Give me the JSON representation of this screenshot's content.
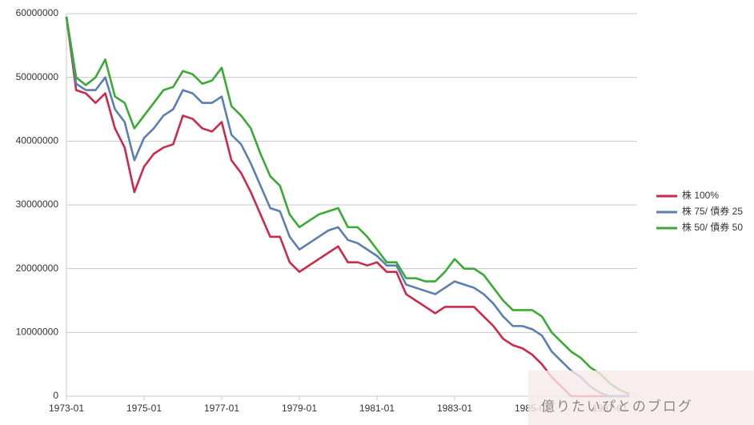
{
  "chart_data": {
    "type": "line",
    "categories": [
      "1973-01",
      null,
      null,
      null,
      null,
      null,
      null,
      null,
      "1975-01",
      null,
      null,
      null,
      null,
      null,
      null,
      null,
      "1977-01",
      null,
      null,
      null,
      null,
      null,
      null,
      null,
      "1979-01",
      null,
      null,
      null,
      null,
      null,
      null,
      null,
      "1981-01",
      null,
      null,
      null,
      null,
      null,
      null,
      null,
      "1983-01",
      null,
      null,
      null,
      null,
      null,
      null,
      null,
      "1985-01",
      null,
      null,
      null,
      null,
      null,
      null,
      null,
      "1987-01",
      null,
      null
    ],
    "series": [
      {
        "name": "株 100%",
        "color": "#cc2a4a",
        "values": [
          59500000,
          48000000,
          47500000,
          46000000,
          47500000,
          42000000,
          39000000,
          32000000,
          36000000,
          38000000,
          39000000,
          39500000,
          44000000,
          43500000,
          42000000,
          41500000,
          43000000,
          37000000,
          35000000,
          32000000,
          28500000,
          25000000,
          25000000,
          21000000,
          19500000,
          20500000,
          21500000,
          22500000,
          23500000,
          21000000,
          21000000,
          20500000,
          21000000,
          19500000,
          19500000,
          16000000,
          15000000,
          14000000,
          13000000,
          14000000,
          14000000,
          14000000,
          14000000,
          12500000,
          11000000,
          9000000,
          8000000,
          7500000,
          6500000,
          5000000,
          3000000,
          1500000,
          0,
          0,
          0,
          0,
          0,
          0,
          0
        ]
      },
      {
        "name": "株 75/ 債券 25",
        "color": "#5a7fb0",
        "values": [
          59500000,
          49000000,
          48000000,
          48000000,
          50000000,
          45000000,
          43000000,
          37000000,
          40500000,
          42000000,
          44000000,
          45000000,
          48000000,
          47500000,
          46000000,
          46000000,
          47000000,
          41000000,
          39500000,
          36500000,
          33000000,
          29500000,
          29000000,
          25000000,
          23000000,
          24000000,
          25000000,
          26000000,
          26500000,
          24500000,
          24000000,
          23000000,
          22000000,
          20500000,
          20500000,
          17500000,
          17000000,
          16500000,
          16000000,
          17000000,
          18000000,
          17500000,
          17000000,
          16000000,
          14500000,
          12500000,
          11000000,
          11000000,
          10500000,
          9500000,
          7000000,
          5500000,
          4000000,
          3000000,
          1500000,
          500000,
          0,
          0,
          0
        ]
      },
      {
        "name": "株 50/ 債券 50",
        "color": "#3aaa35",
        "values": [
          59500000,
          50000000,
          48800000,
          50000000,
          52800000,
          47000000,
          46000000,
          42000000,
          44000000,
          46000000,
          48000000,
          48500000,
          51000000,
          50500000,
          49000000,
          49500000,
          51500000,
          45500000,
          44000000,
          42000000,
          38000000,
          34500000,
          33000000,
          28500000,
          26500000,
          27500000,
          28500000,
          29000000,
          29500000,
          26500000,
          26500000,
          25000000,
          23000000,
          21000000,
          21000000,
          18500000,
          18500000,
          18000000,
          18000000,
          19500000,
          21500000,
          20000000,
          20000000,
          19000000,
          17000000,
          15000000,
          13500000,
          13500000,
          13500000,
          12500000,
          10000000,
          8500000,
          7000000,
          6000000,
          4500000,
          3500000,
          2000000,
          1000000,
          300000
        ]
      }
    ],
    "ylim": [
      0,
      60000000
    ],
    "yticks": [
      0,
      10000000,
      20000000,
      30000000,
      40000000,
      50000000,
      60000000
    ],
    "grid": true,
    "legend": "right"
  },
  "watermark": "億りたいぴとのブログ"
}
